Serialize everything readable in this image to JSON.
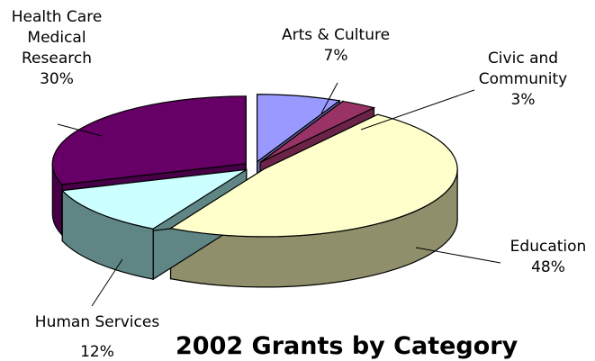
{
  "chart_data": {
    "type": "pie",
    "title": "2002 Grants by Category",
    "slices": [
      {
        "name": "Arts & Culture",
        "label_lines": [
          "Arts & Culture"
        ],
        "pct_label": "7%",
        "value": 7,
        "color": "#9999ff",
        "side": "#6b6bb3"
      },
      {
        "name": "Civic and Community",
        "label_lines": [
          "Civic and",
          "Community"
        ],
        "pct_label": "3%",
        "value": 3,
        "color": "#993366",
        "side": "#6b2447"
      },
      {
        "name": "Education",
        "label_lines": [
          "Education"
        ],
        "pct_label": "48%",
        "value": 48,
        "color": "#ffffcc",
        "side": "#8f8f6b"
      },
      {
        "name": "Human Services",
        "label_lines": [
          "Human Services"
        ],
        "pct_label": "12%",
        "value": 12,
        "color": "#ccffff",
        "side": "#5f8585"
      },
      {
        "name": "Health Care Medical Research",
        "label_lines": [
          "Health Care",
          "Medical",
          "Research"
        ],
        "pct_label": "30%",
        "value": 30,
        "color": "#660066",
        "side": "#470047"
      }
    ]
  }
}
